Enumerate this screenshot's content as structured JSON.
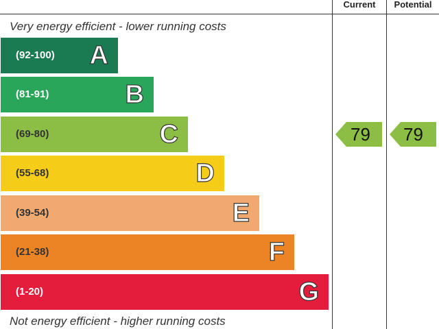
{
  "chart_data": {
    "type": "bar",
    "header": {
      "current_label": "Current",
      "potential_label": "Potential"
    },
    "top_caption": "Very energy efficient - lower running costs",
    "bottom_caption": "Not energy efficient - higher running costs",
    "bands": [
      {
        "letter": "A",
        "range": "(92-100)",
        "color": "#1a7a52",
        "text_color": "#ffffff"
      },
      {
        "letter": "B",
        "range": "(81-91)",
        "color": "#2aa65a",
        "text_color": "#ffffff"
      },
      {
        "letter": "C",
        "range": "(69-80)",
        "color": "#8cbe45",
        "text_color": "#333333"
      },
      {
        "letter": "D",
        "range": "(55-68)",
        "color": "#f5cc18",
        "text_color": "#333333"
      },
      {
        "letter": "E",
        "range": "(39-54)",
        "color": "#f0aa70",
        "text_color": "#333333"
      },
      {
        "letter": "F",
        "range": "(21-38)",
        "color": "#ec8426",
        "text_color": "#333333"
      },
      {
        "letter": "G",
        "range": "(1-20)",
        "color": "#e31d3b",
        "text_color": "#ffffff"
      }
    ],
    "current": {
      "value": "79",
      "band": "C",
      "color": "#8cbe45"
    },
    "potential": {
      "value": "79",
      "band": "C",
      "color": "#8cbe45"
    }
  }
}
